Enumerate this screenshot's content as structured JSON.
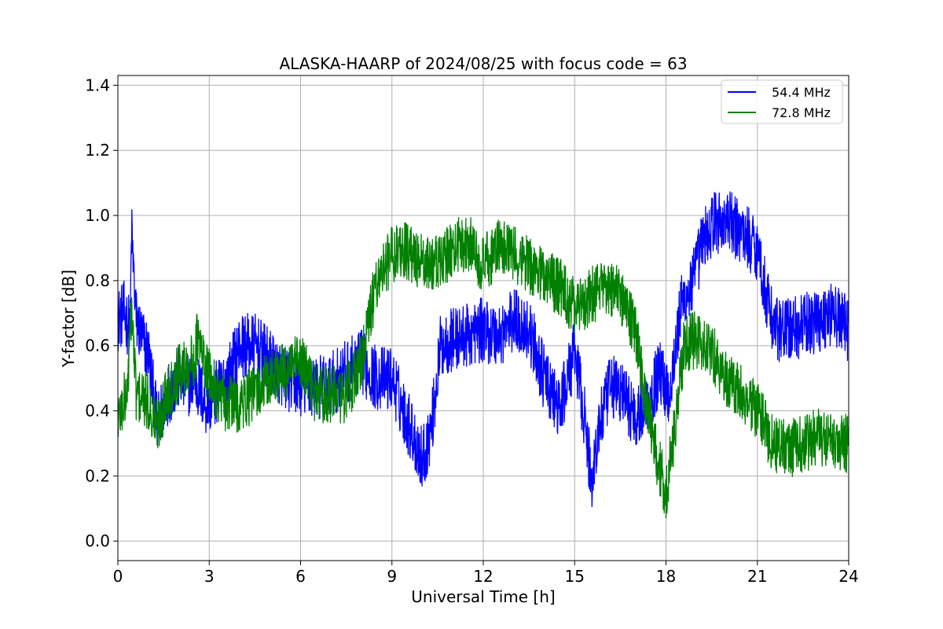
{
  "chart_data": {
    "type": "line",
    "title": "ALASKA-HAARP of 2024/08/25 with focus code = 63",
    "xlabel": "Universal Time [h]",
    "ylabel": "Y-factor [dB]",
    "xlim": [
      0,
      24
    ],
    "ylim": [
      -0.06,
      1.43
    ],
    "xticks": [
      0,
      3,
      6,
      9,
      12,
      15,
      18,
      21,
      24
    ],
    "xtick_labels": [
      "0",
      "3",
      "6",
      "9",
      "12",
      "15",
      "18",
      "21",
      "24"
    ],
    "yticks": [
      0.0,
      0.2,
      0.4,
      0.6,
      0.8,
      1.0,
      1.2,
      1.4
    ],
    "ytick_labels": [
      "0.0",
      "0.2",
      "0.4",
      "0.6",
      "0.8",
      "1.0",
      "1.2",
      "1.4"
    ],
    "grid": true,
    "legend_position": "top-right",
    "series": [
      {
        "name": "54.4 MHz",
        "color": "#0000ff",
        "x": [
          0,
          0.2,
          0.4,
          0.45,
          0.6,
          0.8,
          1.0,
          1.3,
          1.6,
          2.0,
          2.3,
          2.5,
          2.6,
          2.9,
          3.2,
          3.6,
          4.0,
          4.5,
          5.0,
          5.5,
          6.0,
          6.5,
          7.0,
          7.5,
          8.0,
          8.5,
          9.0,
          9.3,
          9.6,
          9.8,
          10.0,
          10.3,
          10.6,
          11.0,
          11.5,
          12.0,
          12.5,
          13.0,
          13.5,
          14.0,
          14.5,
          15.0,
          15.3,
          15.55,
          15.8,
          16.2,
          16.6,
          17.0,
          17.5,
          17.8,
          18.1,
          18.5,
          18.9,
          19.2,
          19.6,
          20.0,
          20.5,
          21.0,
          21.3,
          21.6,
          22.0,
          22.5,
          23.0,
          23.5,
          24.0
        ],
        "values": [
          0.68,
          0.7,
          0.65,
          0.95,
          0.68,
          0.62,
          0.58,
          0.35,
          0.45,
          0.5,
          0.48,
          0.5,
          0.48,
          0.42,
          0.45,
          0.5,
          0.6,
          0.6,
          0.55,
          0.5,
          0.48,
          0.47,
          0.48,
          0.52,
          0.55,
          0.5,
          0.5,
          0.42,
          0.35,
          0.3,
          0.25,
          0.35,
          0.6,
          0.62,
          0.63,
          0.65,
          0.63,
          0.68,
          0.65,
          0.5,
          0.4,
          0.58,
          0.4,
          0.18,
          0.35,
          0.48,
          0.45,
          0.38,
          0.45,
          0.52,
          0.45,
          0.72,
          0.8,
          0.92,
          0.98,
          0.98,
          0.95,
          0.9,
          0.75,
          0.65,
          0.65,
          0.66,
          0.68,
          0.7,
          0.65
        ],
        "noise": 0.1
      },
      {
        "name": "72.8 MHz",
        "color": "#008000",
        "x": [
          0,
          0.3,
          0.45,
          0.6,
          1.0,
          1.3,
          1.6,
          2.0,
          2.5,
          2.6,
          3.0,
          3.5,
          4.0,
          4.5,
          5.0,
          5.5,
          6.0,
          6.5,
          7.0,
          7.5,
          8.0,
          8.5,
          9.0,
          9.3,
          9.6,
          10.0,
          10.5,
          11.0,
          11.5,
          12.0,
          12.5,
          13.0,
          13.5,
          14.0,
          14.5,
          15.0,
          15.5,
          16.0,
          16.5,
          17.0,
          17.3,
          17.6,
          18.0,
          18.3,
          18.6,
          19.0,
          19.5,
          20.0,
          20.5,
          21.0,
          21.5,
          22.0,
          22.5,
          23.0,
          23.5,
          24.0
        ],
        "values": [
          0.38,
          0.45,
          0.72,
          0.45,
          0.42,
          0.35,
          0.45,
          0.52,
          0.55,
          0.62,
          0.5,
          0.42,
          0.42,
          0.45,
          0.5,
          0.52,
          0.55,
          0.45,
          0.45,
          0.45,
          0.55,
          0.8,
          0.88,
          0.9,
          0.88,
          0.85,
          0.85,
          0.9,
          0.92,
          0.85,
          0.9,
          0.88,
          0.85,
          0.82,
          0.78,
          0.72,
          0.75,
          0.78,
          0.75,
          0.65,
          0.45,
          0.3,
          0.15,
          0.35,
          0.6,
          0.62,
          0.58,
          0.5,
          0.45,
          0.4,
          0.3,
          0.28,
          0.3,
          0.32,
          0.3,
          0.3
        ],
        "noise": 0.09
      }
    ]
  }
}
